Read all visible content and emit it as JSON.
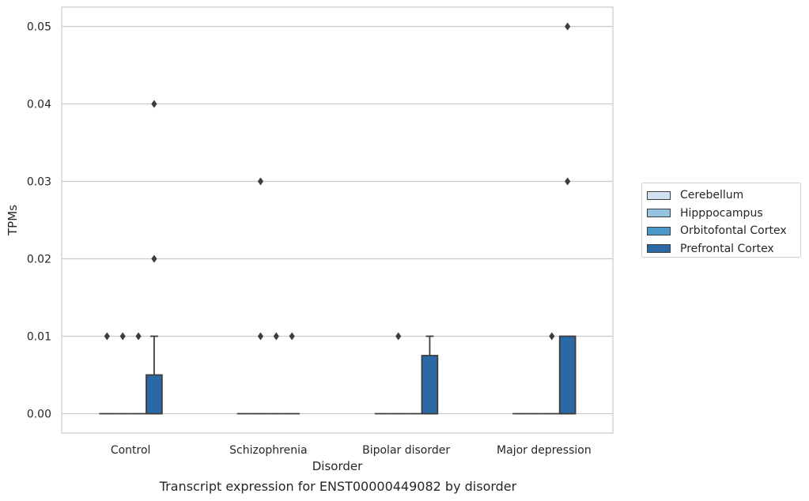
{
  "chart_data": {
    "type": "box",
    "title": "Transcript expression for ENST00000449082 by disorder",
    "xlabel": "Disorder",
    "ylabel": "TPMs",
    "ylim": [
      -0.0025,
      0.0525
    ],
    "yticks": [
      0.0,
      0.01,
      0.02,
      0.03,
      0.04,
      0.05
    ],
    "ytick_labels": [
      "0.00",
      "0.01",
      "0.02",
      "0.03",
      "0.04",
      "0.05"
    ],
    "categories": [
      "Control",
      "Schizophrenia",
      "Bipolar disorder",
      "Major depression"
    ],
    "grid": true,
    "legend_position": "right",
    "series": [
      {
        "name": "Cerebellum",
        "color": "#d0e1f2",
        "boxes": [
          {
            "q1": 0,
            "median": 0,
            "q3": 0,
            "whisker_low": 0,
            "whisker_high": 0,
            "outliers": [
              0.01
            ]
          },
          {
            "q1": 0,
            "median": 0,
            "q3": 0,
            "whisker_low": 0,
            "whisker_high": 0,
            "outliers": []
          },
          {
            "q1": 0,
            "median": 0,
            "q3": 0,
            "whisker_low": 0,
            "whisker_high": 0,
            "outliers": []
          },
          {
            "q1": 0,
            "median": 0,
            "q3": 0,
            "whisker_low": 0,
            "whisker_high": 0,
            "outliers": []
          }
        ]
      },
      {
        "name": "Hipppocampus",
        "color": "#94c4df",
        "boxes": [
          {
            "q1": 0,
            "median": 0,
            "q3": 0,
            "whisker_low": 0,
            "whisker_high": 0,
            "outliers": [
              0.01
            ]
          },
          {
            "q1": 0,
            "median": 0,
            "q3": 0,
            "whisker_low": 0,
            "whisker_high": 0,
            "outliers": [
              0.03,
              0.01
            ]
          },
          {
            "q1": 0,
            "median": 0,
            "q3": 0,
            "whisker_low": 0,
            "whisker_high": 0,
            "outliers": [
              0.01
            ]
          },
          {
            "q1": 0,
            "median": 0,
            "q3": 0,
            "whisker_low": 0,
            "whisker_high": 0,
            "outliers": []
          }
        ]
      },
      {
        "name": "Orbitofontal Cortex",
        "color": "#4a98c9",
        "boxes": [
          {
            "q1": 0,
            "median": 0,
            "q3": 0,
            "whisker_low": 0,
            "whisker_high": 0,
            "outliers": [
              0.01
            ]
          },
          {
            "q1": 0,
            "median": 0,
            "q3": 0,
            "whisker_low": 0,
            "whisker_high": 0,
            "outliers": [
              0.01
            ]
          },
          {
            "q1": 0,
            "median": 0,
            "q3": 0,
            "whisker_low": 0,
            "whisker_high": 0,
            "outliers": []
          },
          {
            "q1": 0,
            "median": 0,
            "q3": 0,
            "whisker_low": 0,
            "whisker_high": 0,
            "outliers": [
              0.01
            ]
          }
        ]
      },
      {
        "name": "Prefrontal Cortex",
        "color": "#2b69a6",
        "boxes": [
          {
            "q1": 0,
            "median": 0,
            "q3": 0.005,
            "whisker_low": 0,
            "whisker_high": 0.01,
            "outliers": [
              0.04,
              0.02
            ]
          },
          {
            "q1": 0,
            "median": 0,
            "q3": 0,
            "whisker_low": 0,
            "whisker_high": 0,
            "outliers": [
              0.01
            ]
          },
          {
            "q1": 0,
            "median": 0,
            "q3": 0.0075,
            "whisker_low": 0,
            "whisker_high": 0.01,
            "outliers": []
          },
          {
            "q1": 0,
            "median": 0,
            "q3": 0.01,
            "whisker_low": 0,
            "whisker_high": 0.01,
            "outliers": [
              0.05,
              0.03
            ]
          }
        ]
      }
    ]
  }
}
